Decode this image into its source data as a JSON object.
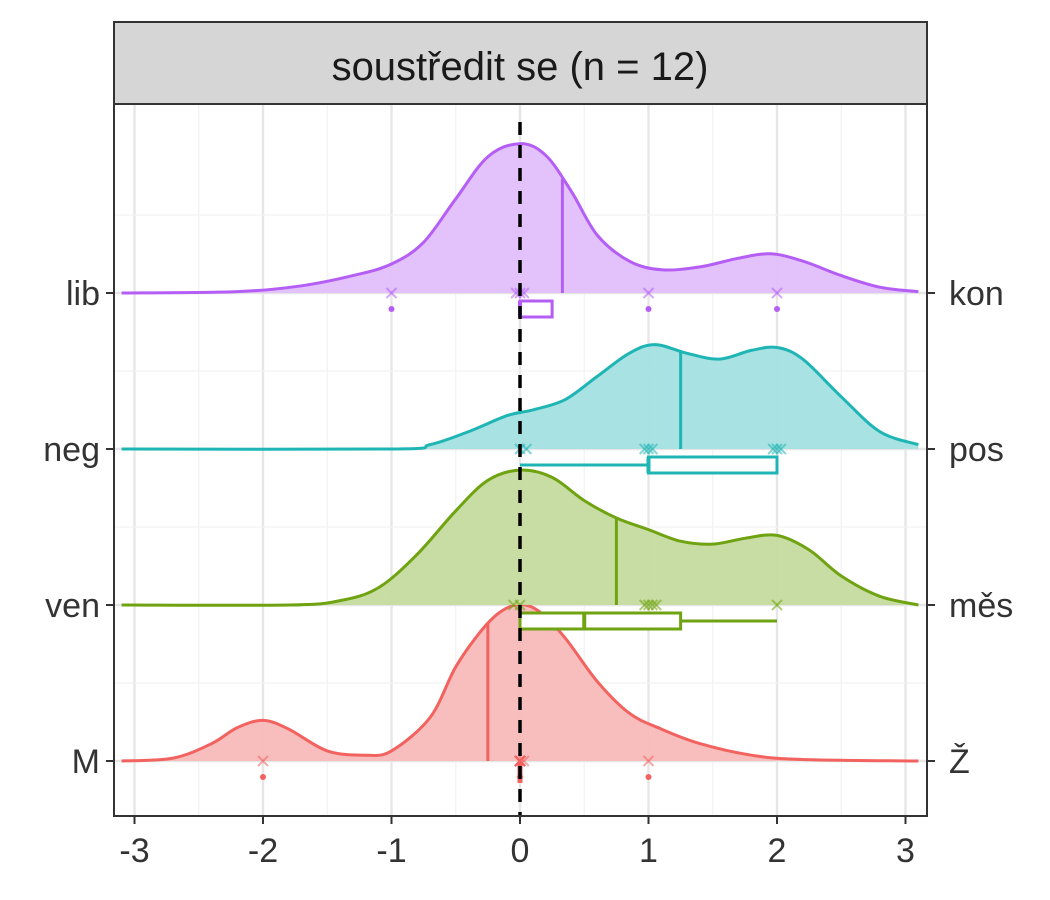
{
  "chart_data": {
    "type": "ridgeline",
    "title": "soustředit se (n = 12)",
    "xlim": [
      -3.1,
      3.1
    ],
    "x_ticks": [
      -3,
      -2,
      -1,
      0,
      1,
      2,
      3
    ],
    "x_tick_labels": [
      "-3",
      "-2",
      "-1",
      "0",
      "1",
      "2",
      "3"
    ],
    "reference_line_x": 0,
    "grid": true,
    "rows": [
      {
        "left_label": "M",
        "right_label": "Ž",
        "color": "#F2625F",
        "fill": "#F8BABA",
        "median": -0.25,
        "density": [
          [
            -3.1,
            0
          ],
          [
            -2.7,
            0.02
          ],
          [
            -2.4,
            0.12
          ],
          [
            -2.2,
            0.23
          ],
          [
            -2.0,
            0.28
          ],
          [
            -1.8,
            0.22
          ],
          [
            -1.5,
            0.07
          ],
          [
            -1.2,
            0.04
          ],
          [
            -1.0,
            0.07
          ],
          [
            -0.7,
            0.3
          ],
          [
            -0.5,
            0.65
          ],
          [
            -0.3,
            0.9
          ],
          [
            -0.15,
            1.03
          ],
          [
            0,
            1.08
          ],
          [
            0.15,
            1.03
          ],
          [
            0.35,
            0.85
          ],
          [
            0.6,
            0.55
          ],
          [
            0.85,
            0.33
          ],
          [
            1.1,
            0.22
          ],
          [
            1.4,
            0.12
          ],
          [
            1.8,
            0.04
          ],
          [
            2.2,
            0.01
          ],
          [
            3.1,
            0
          ]
        ],
        "points": [
          -2,
          0,
          0,
          0,
          0,
          0,
          0,
          0,
          0,
          0.03,
          1
        ],
        "dots": [
          -2,
          0,
          0,
          1
        ],
        "box": null
      },
      {
        "left_label": "ven",
        "right_label": "měs",
        "color": "#6FA311",
        "fill": "#C5DB9F",
        "median": 0.75,
        "density": [
          [
            -3.1,
            0
          ],
          [
            -1.8,
            0
          ],
          [
            -1.4,
            0.03
          ],
          [
            -1.1,
            0.12
          ],
          [
            -0.8,
            0.35
          ],
          [
            -0.5,
            0.65
          ],
          [
            -0.25,
            0.86
          ],
          [
            0,
            0.93
          ],
          [
            0.25,
            0.88
          ],
          [
            0.5,
            0.72
          ],
          [
            0.75,
            0.6
          ],
          [
            1.0,
            0.52
          ],
          [
            1.25,
            0.44
          ],
          [
            1.5,
            0.42
          ],
          [
            1.75,
            0.46
          ],
          [
            2.0,
            0.48
          ],
          [
            2.25,
            0.38
          ],
          [
            2.5,
            0.2
          ],
          [
            2.8,
            0.06
          ],
          [
            3.1,
            0
          ]
        ],
        "points": [
          -0.05,
          0,
          0.97,
          1,
          1.03,
          1.06,
          2
        ],
        "dots": [],
        "box": {
          "min": 0,
          "q1": 0,
          "median": 0.5,
          "q3": 1.25,
          "max": 2
        }
      },
      {
        "left_label": "neg",
        "right_label": "pos",
        "color": "#1FB5B5",
        "fill": "#A4E0E0",
        "median": 1.25,
        "density": [
          [
            -3.1,
            0
          ],
          [
            -1.0,
            0
          ],
          [
            -0.7,
            0.03
          ],
          [
            -0.4,
            0.12
          ],
          [
            -0.1,
            0.23
          ],
          [
            0.1,
            0.27
          ],
          [
            0.35,
            0.34
          ],
          [
            0.6,
            0.5
          ],
          [
            0.85,
            0.66
          ],
          [
            1.05,
            0.72
          ],
          [
            1.3,
            0.66
          ],
          [
            1.55,
            0.62
          ],
          [
            1.8,
            0.68
          ],
          [
            2.0,
            0.7
          ],
          [
            2.2,
            0.62
          ],
          [
            2.5,
            0.36
          ],
          [
            2.8,
            0.12
          ],
          [
            3.1,
            0.03
          ]
        ],
        "points": [
          0,
          0.05,
          0.97,
          1,
          1.03,
          1.97,
          2,
          2.03
        ],
        "dots": [],
        "box": {
          "min": 0,
          "q1": 1,
          "median": 1,
          "q3": 2,
          "max": 2
        }
      },
      {
        "left_label": "lib",
        "right_label": "kon",
        "color": "#B55EF5",
        "fill": "#E2BFFB",
        "median": 0.33,
        "density": [
          [
            -3.1,
            0
          ],
          [
            -2.2,
            0.01
          ],
          [
            -1.7,
            0.05
          ],
          [
            -1.3,
            0.12
          ],
          [
            -1.0,
            0.2
          ],
          [
            -0.75,
            0.35
          ],
          [
            -0.5,
            0.65
          ],
          [
            -0.25,
            0.94
          ],
          [
            0,
            1.03
          ],
          [
            0.2,
            0.95
          ],
          [
            0.4,
            0.7
          ],
          [
            0.6,
            0.4
          ],
          [
            0.85,
            0.22
          ],
          [
            1.1,
            0.16
          ],
          [
            1.4,
            0.18
          ],
          [
            1.7,
            0.24
          ],
          [
            1.95,
            0.27
          ],
          [
            2.2,
            0.22
          ],
          [
            2.5,
            0.12
          ],
          [
            2.8,
            0.04
          ],
          [
            3.1,
            0.01
          ]
        ],
        "points": [
          -1,
          -0.03,
          0,
          0.03,
          1,
          2
        ],
        "dots": [
          -1,
          1,
          2
        ],
        "box": {
          "min": 0,
          "q1": 0,
          "median": 0,
          "q3": 0.25,
          "max": 0.25
        }
      }
    ]
  }
}
